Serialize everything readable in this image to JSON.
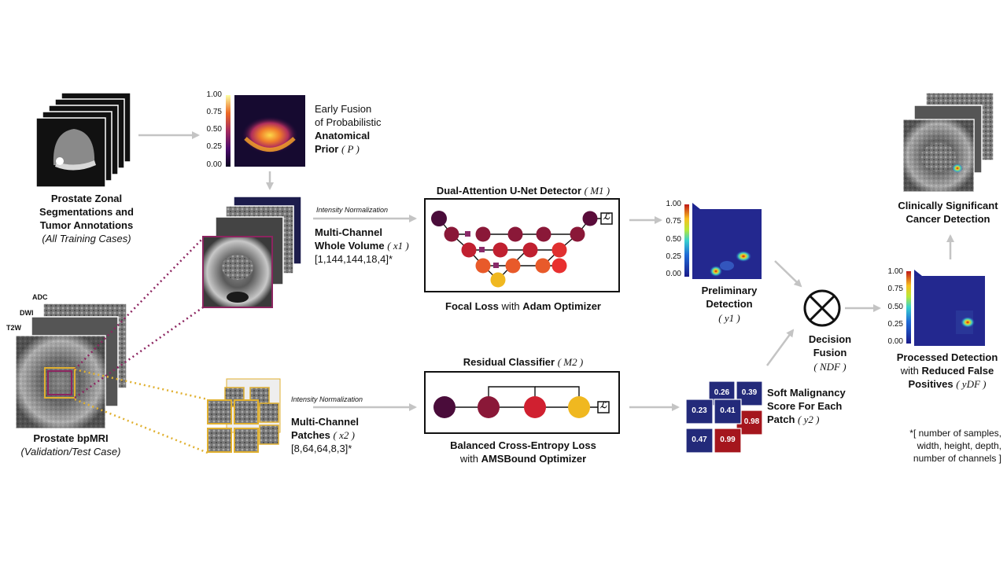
{
  "zonal": {
    "title_l1": "Prostate Zonal",
    "title_l2": "Segmentations and",
    "title_l3": "Tumor Annotations",
    "subtitle": "(All Training Cases)"
  },
  "bpmri": {
    "title": "Prostate bpMRI",
    "subtitle": "(Validation/Test Case)",
    "seq_adc": "ADC",
    "seq_dwi": "DWI",
    "seq_t2w": "T2W"
  },
  "prior": {
    "line1": "Early Fusion",
    "line2": "of Probabilistic",
    "line3": "Anatomical",
    "line4": "Prior",
    "symbol": "( P )",
    "ticks": [
      "1.00",
      "0.75",
      "0.50",
      "0.25",
      "0.00"
    ]
  },
  "whole_volume": {
    "norm_label": "Intensity Normalization",
    "line1": "Multi-Channel",
    "line2": "Whole Volume",
    "symbol": "( x1 )",
    "shape": "[1,144,144,18,4]*"
  },
  "patches": {
    "norm_label": "Intensity Normalization",
    "line1": "Multi-Channel",
    "line2": "Patches",
    "symbol": "( x2 )",
    "shape": "[8,64,64,8,3]*"
  },
  "detector": {
    "title": "Dual-Attention U-Net Detector",
    "symbol": "( M1 )",
    "loss_a": "Focal Loss",
    "loss_b": "with",
    "loss_c": "Adam Optimizer",
    "loss_icon": "ℒ"
  },
  "classifier": {
    "title": "Residual Classifier",
    "symbol": "( M2 )",
    "loss_a": "Balanced Cross-Entropy Loss",
    "loss_b": "with",
    "loss_c": "AMSBound Optimizer",
    "loss_icon": "ℒ"
  },
  "preliminary": {
    "line1": "Preliminary",
    "line2": "Detection",
    "symbol": "( y1 )",
    "ticks": [
      "1.00",
      "0.75",
      "0.50",
      "0.25",
      "0.00"
    ]
  },
  "malignancy": {
    "line1": "Soft Malignancy",
    "line2": "Score For Each",
    "line3": "Patch",
    "symbol": "( y2 )",
    "scores": [
      "0.26",
      "0.39",
      "0.23",
      "0.41",
      "0.98",
      "0.47",
      "0.99"
    ]
  },
  "fusion": {
    "line1": "Decision",
    "line2": "Fusion",
    "symbol": "( NDF )"
  },
  "processed": {
    "line1": "Processed Detection",
    "line2a": "with",
    "line2b": "Reduced False",
    "line3": "Positives",
    "symbol": "( yDF )",
    "ticks": [
      "1.00",
      "0.75",
      "0.50",
      "0.25",
      "0.00"
    ]
  },
  "significant": {
    "line1": "Clinically Significant",
    "line2": "Cancer Detection"
  },
  "footnote": {
    "line1": "*[ number of samples,",
    "line2": "width, height, depth,",
    "line3": "number of channels ]"
  },
  "colors": {
    "arrow": "#c4c4c4",
    "inferno_dark": "#2a0a4a",
    "inferno_mid": "#c8285a",
    "inferno_light": "#f9c02c",
    "heat_bg": "#23288f",
    "purple_dotted": "#8c2560",
    "gold_dotted": "#e0b030",
    "score_low": "#232a7a",
    "score_high": "#a5161d"
  }
}
